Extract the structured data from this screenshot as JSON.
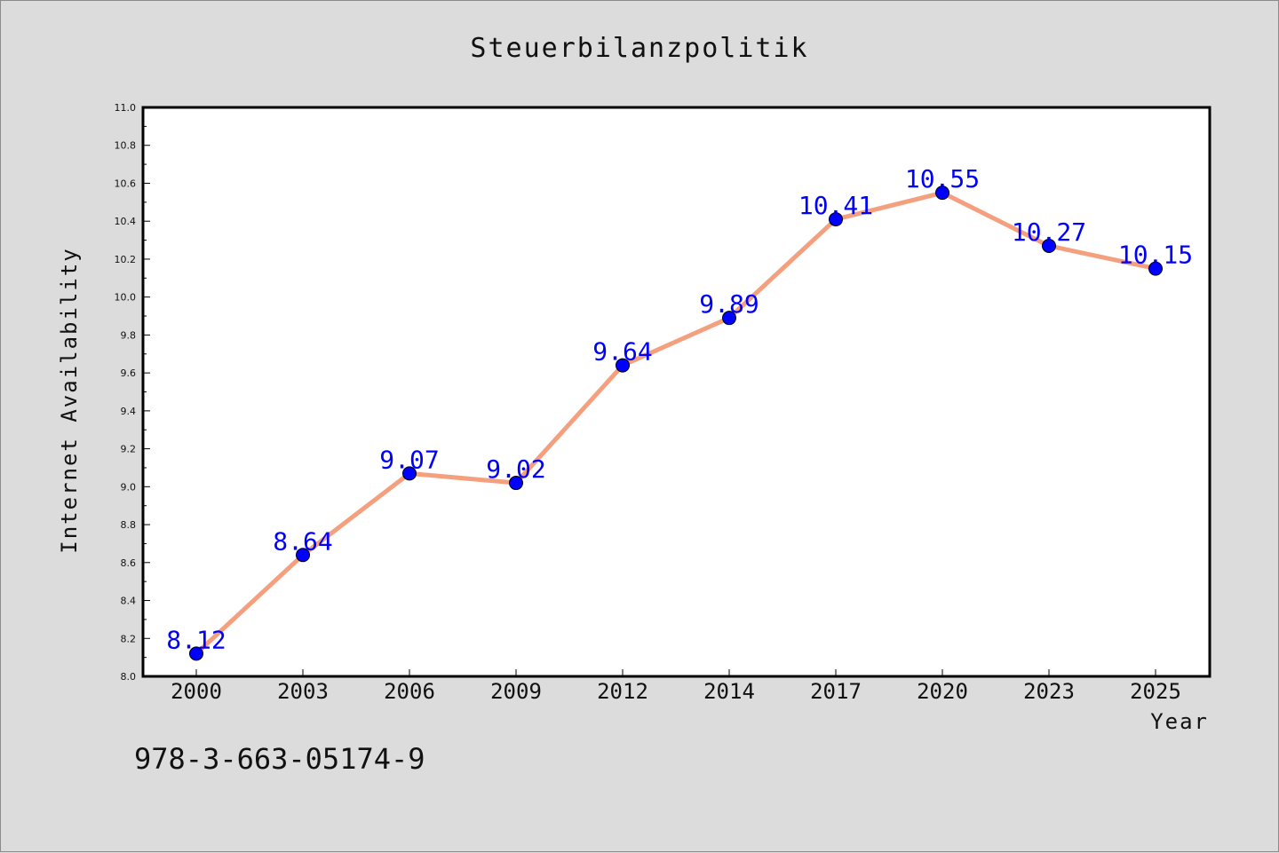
{
  "chart_data": {
    "type": "line",
    "title": "Steuerbilanzpolitik",
    "xlabel": "Year",
    "ylabel": "Internet Availability",
    "categories": [
      "2000",
      "2003",
      "2006",
      "2009",
      "2012",
      "2014",
      "2017",
      "2020",
      "2023",
      "2025"
    ],
    "series": [
      {
        "values": [
          8.12,
          8.64,
          9.07,
          9.02,
          9.64,
          9.89,
          10.41,
          10.55,
          10.27,
          10.15
        ],
        "labels": [
          "8.12",
          "8.64",
          "9.07",
          "9.02",
          "9.64",
          "9.89",
          "10.41",
          "10.55",
          "10.27",
          "10.15"
        ],
        "line_color": "#f4a07e",
        "marker_color": "#0000ff",
        "label_color": "#0000ff"
      }
    ],
    "ylim": [
      8.0,
      11.0
    ],
    "yticks": [
      "8.0",
      "8.2",
      "8.4",
      "8.6",
      "8.8",
      "9.0",
      "9.2",
      "9.4",
      "9.6",
      "9.8",
      "10.0",
      "10.2",
      "10.4",
      "10.6",
      "10.8",
      "11.0"
    ],
    "grid": false,
    "legend": "none"
  },
  "footer": {
    "isbn": "978-3-663-05174-9"
  },
  "colors": {
    "background": "#dcdcdc",
    "plot_background": "#ffffff",
    "axis": "#000000"
  }
}
